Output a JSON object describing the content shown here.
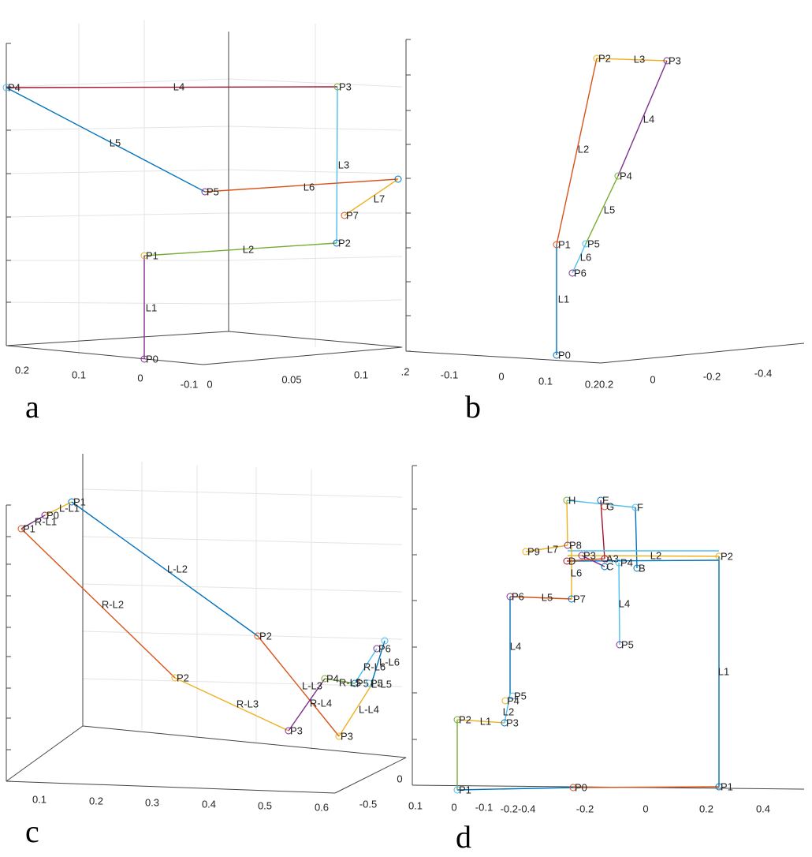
{
  "panels": [
    {
      "panel_label": "a",
      "tick_labels": [
        "0.2",
        "0.1",
        "0",
        "-0.1",
        "0",
        "0.05",
        "0.1"
      ],
      "point_labels": [
        "P4",
        "P3",
        "P5",
        "P7",
        "P2",
        "P1",
        "P0"
      ],
      "line_labels": [
        "L4",
        "L5",
        "L3",
        "L6",
        "L7",
        "L2",
        "L1"
      ]
    },
    {
      "panel_label": "b",
      "tick_labels": [
        ".2",
        "-0.1",
        "0",
        "0.1",
        "0.20.2",
        "0",
        "-0.2",
        "-0.4"
      ],
      "point_labels": [
        "P2",
        "P3",
        "P4",
        "P1",
        "P5",
        "P6",
        "P0"
      ],
      "line_labels": [
        "L3",
        "L4",
        "L2",
        "L5",
        "L6",
        "L1"
      ]
    },
    {
      "panel_label": "c",
      "tick_labels": [
        "0.1",
        "0.2",
        "0.3",
        "0.4",
        "0.5",
        "0.6",
        "0",
        "-0.5"
      ],
      "point_labels": [
        "P1",
        "P0",
        "P1",
        "P2",
        "P2",
        "P3",
        "P3",
        "P4",
        "P6",
        "P5",
        "P5"
      ],
      "line_labels": [
        "L-L1",
        "R-L1",
        "L-L2",
        "R-L2",
        "R-L3",
        "L-L3",
        "R-L4",
        "L-L4",
        "R-L5",
        "L-L5",
        "R-L6",
        "L-L6"
      ]
    },
    {
      "panel_label": "d",
      "tick_labels": [
        "0.1",
        "0",
        "-0.1",
        "-0.2-0.4",
        "-0.2",
        "0",
        "0.2",
        "0.4"
      ],
      "point_labels": [
        "H",
        "E",
        "G",
        "F",
        "P9",
        "P8",
        "P3",
        "A3",
        "D",
        "C",
        "P4",
        "B",
        "P2",
        "P6",
        "P7",
        "P5",
        "P5",
        "P4",
        "P2",
        "P3",
        "P0",
        "P1",
        "P1"
      ],
      "line_labels": [
        "L7",
        "L2",
        "L6",
        "L5",
        "L4",
        "L4",
        "L1",
        "L2",
        "L1"
      ]
    }
  ]
}
